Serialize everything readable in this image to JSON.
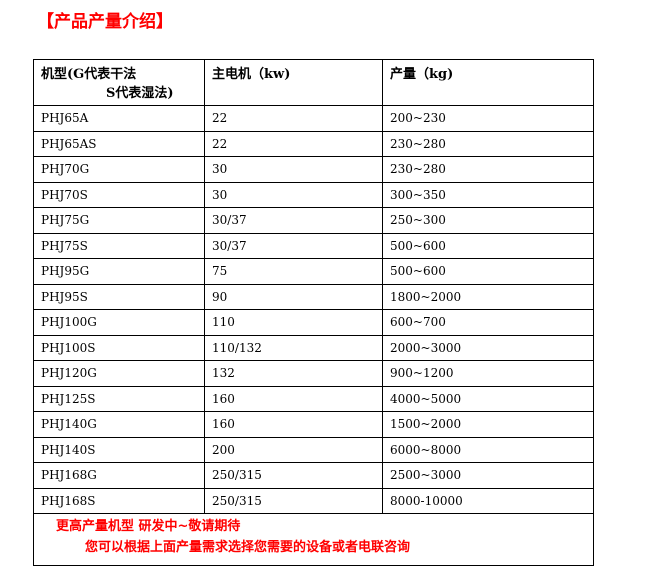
{
  "title": "【产品产量介绍】",
  "table": {
    "headers": {
      "model_line1": "机型(G代表干法",
      "model_line2": "S代表湿法)",
      "motor": "主电机（kw)",
      "output": "产量（kg)"
    },
    "rows": [
      [
        "PHJ65A",
        "22",
        "200~230"
      ],
      [
        "PHJ65AS",
        "22",
        "230~280"
      ],
      [
        "PHJ70G",
        "30",
        "230~280"
      ],
      [
        "PHJ70S",
        "30",
        "300~350"
      ],
      [
        "PHJ75G",
        "30/37",
        "250~300"
      ],
      [
        "PHJ75S",
        "30/37",
        "500~600"
      ],
      [
        "PHJ95G",
        "75",
        "500~600"
      ],
      [
        "PHJ95S",
        "90",
        "1800~2000"
      ],
      [
        "PHJ100G",
        "110",
        "600~700"
      ],
      [
        "PHJ100S",
        "110/132",
        "2000~3000"
      ],
      [
        "PHJ120G",
        "132",
        "900~1200"
      ],
      [
        "PHJ125S",
        "160",
        "4000~5000"
      ],
      [
        "PHJ140G",
        "160",
        "1500~2000"
      ],
      [
        "PHJ140S",
        "200",
        "6000~8000"
      ],
      [
        "PHJ168G",
        "250/315",
        "2500~3000"
      ],
      [
        "PHJ168S",
        "250/315",
        "8000-10000"
      ]
    ],
    "footer": {
      "line1": "更高产量机型 研发中~敬请期待",
      "line2": "您可以根据上面产量需求选择您需要的设备或者电联咨询"
    }
  },
  "colors": {
    "accent": "#ff0000"
  }
}
